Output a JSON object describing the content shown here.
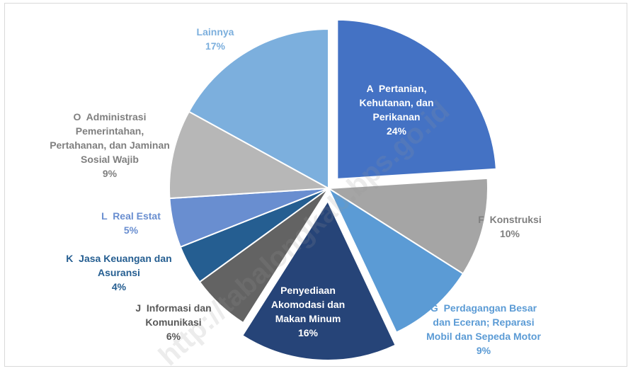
{
  "chart_data": {
    "type": "pie",
    "categories": [
      "A  Pertanian, Kehutanan, dan Perikanan",
      "F  Konstruksi",
      "G  Perdagangan Besar dan Eceran; Reparasi Mobil dan Sepeda Motor",
      "Penyediaan Akomodasi dan Makan Minum",
      "J  Informasi dan Komunikasi",
      "K  Jasa Keuangan dan Asuransi",
      "L  Real Estat",
      "O  Administrasi Pemerintahan, Pertahanan, dan Jaminan Sosial Wajib",
      "Lainnya"
    ],
    "values": [
      24,
      10,
      9,
      16,
      6,
      4,
      5,
      9,
      17
    ],
    "value_labels": [
      "24%",
      "10%",
      "9%",
      "16%",
      "6%",
      "4%",
      "5%",
      "9%",
      "17%"
    ],
    "colors": [
      "#4472c4",
      "#a5a5a5",
      "#5b9bd5",
      "#264478",
      "#636363",
      "#255e91",
      "#698ed0",
      "#b7b7b7",
      "#7cafdd"
    ],
    "exploded": [
      true,
      false,
      false,
      true,
      false,
      false,
      false,
      false,
      false
    ],
    "watermark": "http://tabalongkab.bps.go.id"
  }
}
